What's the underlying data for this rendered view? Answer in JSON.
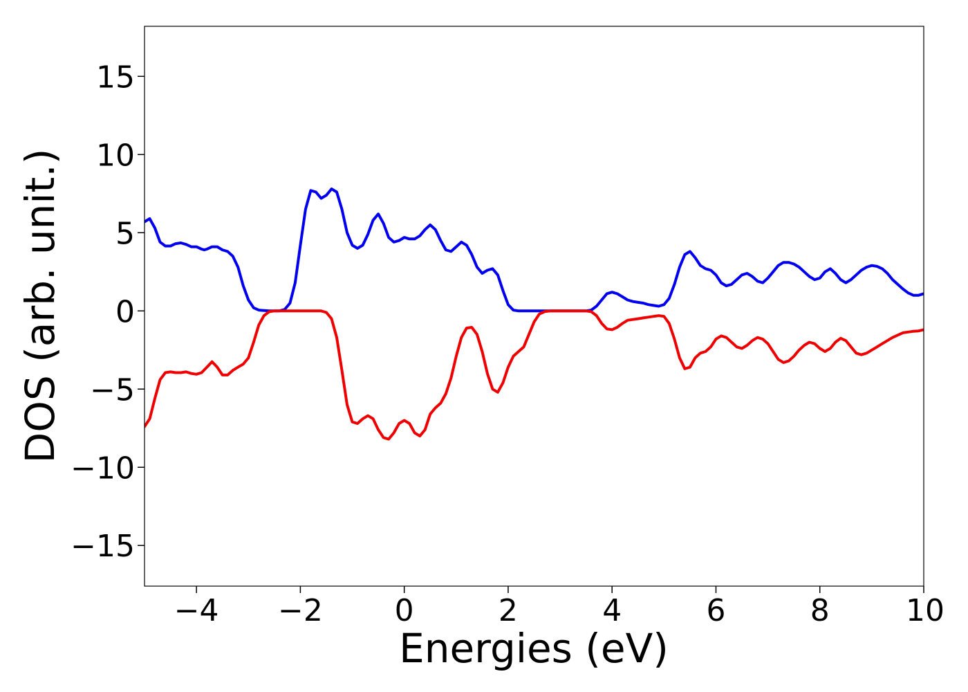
{
  "chart_data": {
    "type": "line",
    "title": "",
    "xlabel": "Energies (eV)",
    "ylabel": "DOS (arb. unit.)",
    "xlim": [
      -5,
      10
    ],
    "ylim": [
      -17.6,
      18.2
    ],
    "grid": false,
    "legend": "none",
    "x_ticks": [
      -4,
      -2,
      0,
      2,
      4,
      6,
      8,
      10
    ],
    "x_tick_labels": [
      "−4",
      "−2",
      "0",
      "2",
      "4",
      "6",
      "8",
      "10"
    ],
    "y_ticks": [
      -15,
      -10,
      -5,
      0,
      5,
      10,
      15
    ],
    "y_tick_labels": [
      "−15",
      "−10",
      "−5",
      "0",
      "5",
      "10",
      "15"
    ],
    "series": [
      {
        "color": "#0000ee",
        "points": [
          [
            -5.0,
            5.7
          ],
          [
            -4.9,
            5.9
          ],
          [
            -4.8,
            5.3
          ],
          [
            -4.7,
            4.4
          ],
          [
            -4.6,
            4.15
          ],
          [
            -4.5,
            4.15
          ],
          [
            -4.4,
            4.3
          ],
          [
            -4.3,
            4.35
          ],
          [
            -4.2,
            4.25
          ],
          [
            -4.1,
            4.1
          ],
          [
            -4.0,
            4.1
          ],
          [
            -3.9,
            3.95
          ],
          [
            -3.85,
            3.9
          ],
          [
            -3.8,
            3.95
          ],
          [
            -3.7,
            4.1
          ],
          [
            -3.6,
            4.1
          ],
          [
            -3.5,
            3.9
          ],
          [
            -3.4,
            3.8
          ],
          [
            -3.3,
            3.5
          ],
          [
            -3.2,
            2.8
          ],
          [
            -3.1,
            1.6
          ],
          [
            -3.0,
            0.7
          ],
          [
            -2.9,
            0.2
          ],
          [
            -2.8,
            0.05
          ],
          [
            -2.6,
            0.0
          ],
          [
            -2.4,
            0.0
          ],
          [
            -2.3,
            0.1
          ],
          [
            -2.2,
            0.5
          ],
          [
            -2.1,
            1.8
          ],
          [
            -2.0,
            4.2
          ],
          [
            -1.9,
            6.5
          ],
          [
            -1.8,
            7.7
          ],
          [
            -1.7,
            7.6
          ],
          [
            -1.6,
            7.2
          ],
          [
            -1.5,
            7.4
          ],
          [
            -1.4,
            7.8
          ],
          [
            -1.3,
            7.6
          ],
          [
            -1.2,
            6.5
          ],
          [
            -1.1,
            5.0
          ],
          [
            -1.0,
            4.2
          ],
          [
            -0.9,
            4.0
          ],
          [
            -0.8,
            4.2
          ],
          [
            -0.7,
            4.9
          ],
          [
            -0.6,
            5.8
          ],
          [
            -0.5,
            6.2
          ],
          [
            -0.4,
            5.6
          ],
          [
            -0.3,
            4.7
          ],
          [
            -0.2,
            4.4
          ],
          [
            -0.1,
            4.5
          ],
          [
            0.0,
            4.7
          ],
          [
            0.1,
            4.6
          ],
          [
            0.2,
            4.6
          ],
          [
            0.3,
            4.8
          ],
          [
            0.4,
            5.2
          ],
          [
            0.5,
            5.5
          ],
          [
            0.6,
            5.2
          ],
          [
            0.7,
            4.5
          ],
          [
            0.8,
            3.9
          ],
          [
            0.9,
            3.8
          ],
          [
            1.0,
            4.1
          ],
          [
            1.1,
            4.4
          ],
          [
            1.2,
            4.2
          ],
          [
            1.3,
            3.6
          ],
          [
            1.4,
            2.8
          ],
          [
            1.5,
            2.4
          ],
          [
            1.6,
            2.6
          ],
          [
            1.7,
            2.7
          ],
          [
            1.8,
            2.3
          ],
          [
            1.9,
            1.3
          ],
          [
            2.0,
            0.4
          ],
          [
            2.1,
            0.05
          ],
          [
            2.2,
            0.0
          ],
          [
            3.5,
            0.0
          ],
          [
            3.6,
            0.05
          ],
          [
            3.7,
            0.3
          ],
          [
            3.8,
            0.7
          ],
          [
            3.9,
            1.1
          ],
          [
            4.0,
            1.2
          ],
          [
            4.1,
            1.1
          ],
          [
            4.2,
            0.9
          ],
          [
            4.3,
            0.7
          ],
          [
            4.4,
            0.6
          ],
          [
            4.5,
            0.55
          ],
          [
            4.6,
            0.5
          ],
          [
            4.7,
            0.4
          ],
          [
            4.8,
            0.35
          ],
          [
            4.9,
            0.3
          ],
          [
            5.0,
            0.4
          ],
          [
            5.1,
            0.8
          ],
          [
            5.2,
            1.7
          ],
          [
            5.3,
            2.8
          ],
          [
            5.4,
            3.6
          ],
          [
            5.5,
            3.8
          ],
          [
            5.6,
            3.4
          ],
          [
            5.7,
            2.9
          ],
          [
            5.8,
            2.7
          ],
          [
            5.9,
            2.6
          ],
          [
            6.0,
            2.3
          ],
          [
            6.1,
            1.8
          ],
          [
            6.2,
            1.6
          ],
          [
            6.3,
            1.7
          ],
          [
            6.4,
            2.0
          ],
          [
            6.5,
            2.3
          ],
          [
            6.6,
            2.4
          ],
          [
            6.7,
            2.2
          ],
          [
            6.8,
            1.9
          ],
          [
            6.9,
            1.8
          ],
          [
            7.0,
            2.1
          ],
          [
            7.1,
            2.5
          ],
          [
            7.2,
            2.9
          ],
          [
            7.3,
            3.1
          ],
          [
            7.4,
            3.1
          ],
          [
            7.5,
            3.0
          ],
          [
            7.6,
            2.8
          ],
          [
            7.7,
            2.5
          ],
          [
            7.8,
            2.2
          ],
          [
            7.9,
            2.0
          ],
          [
            8.0,
            2.1
          ],
          [
            8.1,
            2.5
          ],
          [
            8.2,
            2.7
          ],
          [
            8.3,
            2.4
          ],
          [
            8.4,
            2.0
          ],
          [
            8.5,
            1.8
          ],
          [
            8.6,
            2.0
          ],
          [
            8.7,
            2.3
          ],
          [
            8.8,
            2.6
          ],
          [
            8.9,
            2.8
          ],
          [
            9.0,
            2.9
          ],
          [
            9.1,
            2.85
          ],
          [
            9.2,
            2.7
          ],
          [
            9.3,
            2.4
          ],
          [
            9.4,
            2.0
          ],
          [
            9.5,
            1.7
          ],
          [
            9.6,
            1.4
          ],
          [
            9.7,
            1.15
          ],
          [
            9.8,
            1.0
          ],
          [
            9.9,
            1.0
          ],
          [
            10.0,
            1.1
          ]
        ]
      },
      {
        "color": "#ee0000",
        "points": [
          [
            -5.0,
            -7.4
          ],
          [
            -4.9,
            -6.9
          ],
          [
            -4.8,
            -5.6
          ],
          [
            -4.7,
            -4.4
          ],
          [
            -4.6,
            -3.95
          ],
          [
            -4.5,
            -3.9
          ],
          [
            -4.4,
            -3.95
          ],
          [
            -4.3,
            -3.95
          ],
          [
            -4.2,
            -3.9
          ],
          [
            -4.1,
            -4.0
          ],
          [
            -4.0,
            -4.05
          ],
          [
            -3.9,
            -3.95
          ],
          [
            -3.8,
            -3.6
          ],
          [
            -3.7,
            -3.25
          ],
          [
            -3.6,
            -3.6
          ],
          [
            -3.5,
            -4.1
          ],
          [
            -3.4,
            -4.1
          ],
          [
            -3.3,
            -3.8
          ],
          [
            -3.2,
            -3.6
          ],
          [
            -3.1,
            -3.4
          ],
          [
            -3.0,
            -3.0
          ],
          [
            -2.9,
            -2.0
          ],
          [
            -2.8,
            -0.9
          ],
          [
            -2.7,
            -0.3
          ],
          [
            -2.6,
            -0.05
          ],
          [
            -2.5,
            0.0
          ],
          [
            -1.6,
            0.0
          ],
          [
            -1.5,
            -0.1
          ],
          [
            -1.4,
            -0.5
          ],
          [
            -1.3,
            -1.7
          ],
          [
            -1.2,
            -3.8
          ],
          [
            -1.1,
            -6.0
          ],
          [
            -1.0,
            -7.1
          ],
          [
            -0.9,
            -7.2
          ],
          [
            -0.8,
            -6.9
          ],
          [
            -0.7,
            -6.7
          ],
          [
            -0.6,
            -6.9
          ],
          [
            -0.5,
            -7.6
          ],
          [
            -0.4,
            -8.1
          ],
          [
            -0.3,
            -8.2
          ],
          [
            -0.2,
            -7.8
          ],
          [
            -0.1,
            -7.2
          ],
          [
            0.0,
            -7.0
          ],
          [
            0.1,
            -7.2
          ],
          [
            0.2,
            -7.8
          ],
          [
            0.3,
            -8.0
          ],
          [
            0.4,
            -7.6
          ],
          [
            0.5,
            -6.6
          ],
          [
            0.6,
            -6.2
          ],
          [
            0.7,
            -5.9
          ],
          [
            0.8,
            -5.3
          ],
          [
            0.9,
            -4.3
          ],
          [
            1.0,
            -2.9
          ],
          [
            1.1,
            -1.7
          ],
          [
            1.2,
            -1.1
          ],
          [
            1.3,
            -1.05
          ],
          [
            1.4,
            -1.5
          ],
          [
            1.5,
            -2.6
          ],
          [
            1.6,
            -4.0
          ],
          [
            1.7,
            -5.0
          ],
          [
            1.8,
            -5.2
          ],
          [
            1.9,
            -4.6
          ],
          [
            2.0,
            -3.6
          ],
          [
            2.1,
            -2.9
          ],
          [
            2.2,
            -2.6
          ],
          [
            2.3,
            -2.3
          ],
          [
            2.4,
            -1.5
          ],
          [
            2.5,
            -0.7
          ],
          [
            2.6,
            -0.2
          ],
          [
            2.7,
            -0.05
          ],
          [
            2.8,
            0.0
          ],
          [
            3.5,
            0.0
          ],
          [
            3.6,
            -0.05
          ],
          [
            3.7,
            -0.3
          ],
          [
            3.8,
            -0.8
          ],
          [
            3.9,
            -1.15
          ],
          [
            4.0,
            -1.2
          ],
          [
            4.1,
            -1.05
          ],
          [
            4.2,
            -0.8
          ],
          [
            4.3,
            -0.6
          ],
          [
            4.4,
            -0.55
          ],
          [
            4.5,
            -0.5
          ],
          [
            4.6,
            -0.45
          ],
          [
            4.7,
            -0.4
          ],
          [
            4.8,
            -0.35
          ],
          [
            4.9,
            -0.3
          ],
          [
            5.0,
            -0.35
          ],
          [
            5.1,
            -0.8
          ],
          [
            5.2,
            -1.8
          ],
          [
            5.3,
            -3.0
          ],
          [
            5.4,
            -3.7
          ],
          [
            5.5,
            -3.6
          ],
          [
            5.6,
            -3.0
          ],
          [
            5.7,
            -2.7
          ],
          [
            5.8,
            -2.6
          ],
          [
            5.9,
            -2.3
          ],
          [
            6.0,
            -1.8
          ],
          [
            6.1,
            -1.6
          ],
          [
            6.2,
            -1.7
          ],
          [
            6.3,
            -2.0
          ],
          [
            6.4,
            -2.3
          ],
          [
            6.5,
            -2.4
          ],
          [
            6.6,
            -2.2
          ],
          [
            6.7,
            -1.9
          ],
          [
            6.8,
            -1.7
          ],
          [
            6.9,
            -1.8
          ],
          [
            7.0,
            -2.1
          ],
          [
            7.1,
            -2.6
          ],
          [
            7.2,
            -3.1
          ],
          [
            7.3,
            -3.3
          ],
          [
            7.4,
            -3.2
          ],
          [
            7.5,
            -2.9
          ],
          [
            7.6,
            -2.5
          ],
          [
            7.7,
            -2.2
          ],
          [
            7.8,
            -2.0
          ],
          [
            7.9,
            -2.1
          ],
          [
            8.0,
            -2.4
          ],
          [
            8.1,
            -2.6
          ],
          [
            8.2,
            -2.4
          ],
          [
            8.3,
            -2.0
          ],
          [
            8.4,
            -1.75
          ],
          [
            8.5,
            -1.9
          ],
          [
            8.6,
            -2.3
          ],
          [
            8.7,
            -2.7
          ],
          [
            8.8,
            -2.8
          ],
          [
            8.9,
            -2.7
          ],
          [
            9.0,
            -2.5
          ],
          [
            9.1,
            -2.3
          ],
          [
            9.2,
            -2.1
          ],
          [
            9.3,
            -1.9
          ],
          [
            9.4,
            -1.7
          ],
          [
            9.5,
            -1.55
          ],
          [
            9.6,
            -1.4
          ],
          [
            9.7,
            -1.35
          ],
          [
            9.8,
            -1.3
          ],
          [
            9.9,
            -1.28
          ],
          [
            10.0,
            -1.2
          ]
        ]
      }
    ]
  }
}
